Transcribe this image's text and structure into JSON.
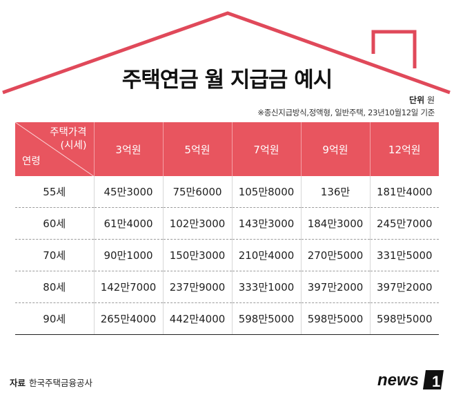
{
  "title": "주택연금 월 지급금 예시",
  "unit_label": "단위",
  "unit_value": "원",
  "note": "※종신지급방식,정액형, 일반주택, 23년10월12일 기준",
  "chart_data": {
    "type": "table",
    "header_top": "주택가격",
    "header_top2": "(시세)",
    "header_side": "연령",
    "columns": [
      "3억원",
      "5억원",
      "7억원",
      "9억원",
      "12억원"
    ],
    "rows": [
      {
        "age": "55세",
        "values": [
          "45만3000",
          "75만6000",
          "105만8000",
          "136만",
          "181만4000"
        ]
      },
      {
        "age": "60세",
        "values": [
          "61만4000",
          "102만3000",
          "143만3000",
          "184만3000",
          "245만7000"
        ]
      },
      {
        "age": "70세",
        "values": [
          "90만1000",
          "150만3000",
          "210만4000",
          "270만5000",
          "331만5000"
        ]
      },
      {
        "age": "80세",
        "values": [
          "142만7000",
          "237만9000",
          "333만1000",
          "397만2000",
          "397만2000"
        ]
      },
      {
        "age": "90세",
        "values": [
          "265만4000",
          "442만4000",
          "598만5000",
          "598만5000",
          "598만5000"
        ]
      }
    ]
  },
  "source_label": "자료",
  "source_value": "한국주택금융공사",
  "logo": {
    "text": "news",
    "mark": "1"
  },
  "colors": {
    "accent": "#e8555f",
    "roof": "#e0495a"
  }
}
